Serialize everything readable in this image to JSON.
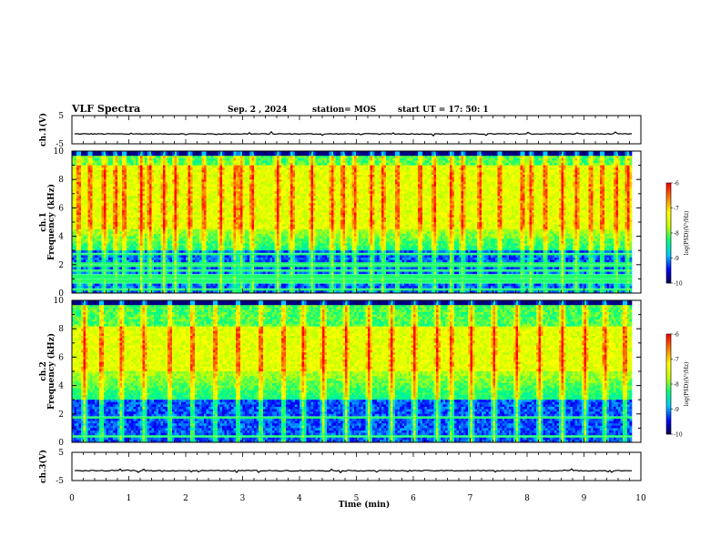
{
  "header": {
    "title": "VLF Spectra",
    "date": "Sep. 2 , 2024",
    "station": "station= MOS",
    "start": "start UT =  17: 50: 1"
  },
  "chart_data": [
    {
      "type": "line",
      "id": "ch1-wave",
      "ylabel": "ch.1(V)",
      "xlim": [
        0,
        10
      ],
      "ylim": [
        -5,
        5
      ],
      "yticks": [
        "5",
        "-5"
      ],
      "baseline": -1.5,
      "color": "#000000"
    },
    {
      "type": "heatmap",
      "id": "ch1-spec",
      "ylabel": "ch.1",
      "ylabel2": "Frequency (kHz)",
      "xlim": [
        0,
        10
      ],
      "ylim": [
        0,
        10
      ],
      "yticks": [
        "0",
        "2",
        "4",
        "6",
        "8",
        "10"
      ],
      "strong_band_khz": [
        4.5,
        9.0
      ],
      "bursts_min": [
        0.1,
        0.3,
        0.55,
        0.75,
        0.9,
        1.2,
        1.35,
        1.6,
        1.8,
        2.05,
        2.3,
        2.6,
        2.85,
        2.95,
        3.15,
        3.6,
        3.85,
        4.2,
        4.55,
        4.75,
        4.95,
        5.25,
        5.45,
        5.7,
        6.1,
        6.35,
        6.65,
        6.85,
        7.15,
        7.5,
        7.9,
        8.05,
        8.3,
        8.6,
        8.85,
        9.1,
        9.3,
        9.55,
        9.75
      ],
      "lines_khz": [
        0.3,
        0.7,
        1.0,
        1.3,
        1.6,
        2.0,
        2.8
      ]
    },
    {
      "type": "heatmap",
      "id": "ch2-spec",
      "ylabel": "ch.2",
      "ylabel2": "Frequency (kHz)",
      "xlim": [
        0,
        10
      ],
      "ylim": [
        0,
        10
      ],
      "yticks": [
        "0",
        "2",
        "4",
        "6",
        "8",
        "10"
      ],
      "strong_band_khz": [
        5.0,
        8.2
      ],
      "bursts_min": [
        0.2,
        0.5,
        0.85,
        1.25,
        1.7,
        2.1,
        2.5,
        2.9,
        3.3,
        3.7,
        4.05,
        4.4,
        4.8,
        5.2,
        5.6,
        6.0,
        6.4,
        6.65,
        7.0,
        7.4,
        7.8,
        8.2,
        8.6,
        9.0,
        9.35,
        9.7
      ],
      "lines_khz": [
        0.4,
        1.8
      ]
    },
    {
      "type": "line",
      "id": "ch3-wave",
      "ylabel": "ch.3(V)",
      "xlim": [
        0,
        10
      ],
      "ylim": [
        -5,
        5
      ],
      "yticks": [
        "5",
        "-5"
      ],
      "baseline": -1.5,
      "color": "#000000"
    }
  ],
  "xaxis": {
    "label": "Time  (min)",
    "ticks": [
      "0",
      "1",
      "2",
      "3",
      "4",
      "5",
      "6",
      "7",
      "8",
      "9",
      "10"
    ],
    "data_end_min": 9.85
  },
  "colorbar": {
    "label": "log(PSD)(V²/Hz)",
    "ticks": [
      "-6",
      "-7",
      "-8",
      "-9",
      "-10"
    ],
    "range": [
      -10,
      -6
    ],
    "colors": [
      "#000040",
      "#0000ff",
      "#00c8ff",
      "#00ff80",
      "#c8ff00",
      "#ffff00",
      "#ff8000",
      "#ff0000",
      "#ffffff"
    ]
  }
}
